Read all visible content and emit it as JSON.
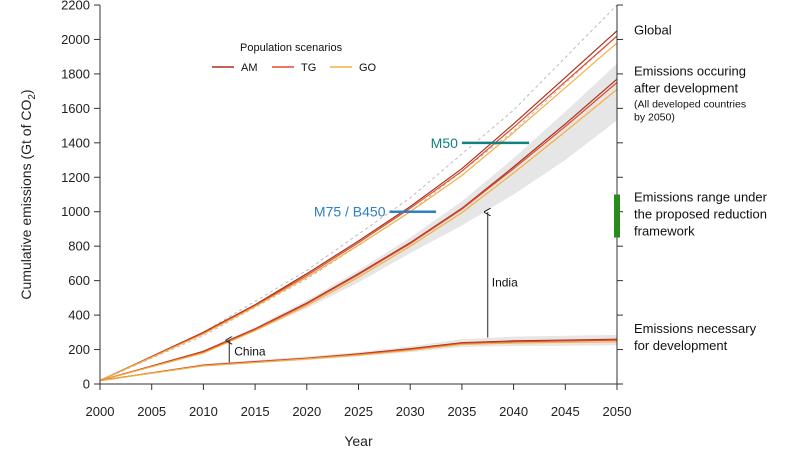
{
  "chart_data": {
    "type": "line",
    "title": "",
    "xlabel": "Year",
    "ylabel_main": "Cumulative emissions (Gt of CO",
    "ylabel_sub": "2",
    "ylabel_end": ")",
    "xlim": [
      2000,
      2050
    ],
    "ylim": [
      0,
      2200
    ],
    "x_ticks": [
      "2000",
      "2005",
      "2010",
      "2015",
      "2020",
      "2025",
      "2030",
      "2035",
      "2040",
      "2045",
      "2050"
    ],
    "y_ticks": [
      "0",
      "200",
      "400",
      "600",
      "800",
      "1000",
      "1200",
      "1400",
      "1600",
      "1800",
      "2000",
      "2200"
    ],
    "x": [
      2000,
      2010,
      2015,
      2020,
      2025,
      2030,
      2035,
      2040,
      2045,
      2050
    ],
    "legend": {
      "title": "Population scenarios",
      "entries": [
        {
          "name": "AM",
          "color": "#a83218"
        },
        {
          "name": "TG",
          "color": "#e04a30"
        },
        {
          "name": "GO",
          "color": "#f2b040"
        }
      ]
    },
    "series": [
      {
        "name": "AM global",
        "group": "global",
        "color": "#a83218",
        "values": [
          20,
          300,
          460,
          640,
          830,
          1030,
          1250,
          1510,
          1780,
          2050
        ]
      },
      {
        "name": "TG global",
        "group": "global",
        "color": "#e04a30",
        "values": [
          20,
          295,
          455,
          630,
          820,
          1020,
          1235,
          1490,
          1755,
          2020
        ]
      },
      {
        "name": "GO global",
        "group": "global",
        "color": "#f2b040",
        "values": [
          20,
          290,
          450,
          620,
          805,
          1000,
          1210,
          1460,
          1720,
          1980
        ]
      },
      {
        "name": "AM after development",
        "group": "after",
        "color": "#a83218",
        "values": [
          20,
          190,
          320,
          470,
          640,
          820,
          1020,
          1260,
          1510,
          1770
        ]
      },
      {
        "name": "TG after development",
        "group": "after",
        "color": "#e04a30",
        "values": [
          20,
          185,
          315,
          465,
          635,
          815,
          1015,
          1250,
          1495,
          1750
        ]
      },
      {
        "name": "GO after development",
        "group": "after",
        "color": "#f2b040",
        "values": [
          20,
          180,
          310,
          455,
          620,
          800,
          995,
          1225,
          1465,
          1710
        ]
      },
      {
        "name": "AM development",
        "group": "dev",
        "color": "#a83218",
        "values": [
          20,
          110,
          130,
          150,
          175,
          205,
          240,
          250,
          255,
          260
        ]
      },
      {
        "name": "TG development",
        "group": "dev",
        "color": "#e04a30",
        "values": [
          20,
          108,
          128,
          148,
          172,
          200,
          235,
          245,
          250,
          255
        ]
      },
      {
        "name": "GO development",
        "group": "dev",
        "color": "#f2b040",
        "values": [
          20,
          105,
          125,
          145,
          168,
          195,
          230,
          238,
          242,
          245
        ]
      }
    ],
    "bands": [
      {
        "name": "after development range",
        "x": [
          2010,
          2015,
          2020,
          2025,
          2030,
          2035,
          2040,
          2045,
          2050
        ],
        "lower": [
          185,
          305,
          440,
          590,
          760,
          920,
          1100,
          1300,
          1530
        ],
        "upper": [
          195,
          330,
          485,
          660,
          850,
          1060,
          1310,
          1580,
          1860
        ]
      },
      {
        "name": "development range",
        "x": [
          2010,
          2015,
          2020,
          2025,
          2030,
          2035,
          2040,
          2045,
          2050
        ],
        "lower": [
          100,
          120,
          138,
          160,
          185,
          215,
          220,
          222,
          225
        ],
        "upper": [
          118,
          138,
          160,
          185,
          218,
          260,
          275,
          280,
          285
        ]
      }
    ],
    "reference_lines": [
      {
        "name": "upper dashed",
        "color": "#bbbbbb",
        "x": [
          2000,
          2010,
          2020,
          2030,
          2040,
          2050
        ],
        "values": [
          20,
          300,
          660,
          1080,
          1590,
          2200
        ]
      },
      {
        "name": "lower dashed",
        "color": "#bbbbbb",
        "x": [
          2000,
          2010,
          2020,
          2030,
          2040,
          2050
        ],
        "values": [
          20,
          280,
          610,
          1000,
          1470,
          2020
        ]
      }
    ],
    "markers": [
      {
        "label": "M50",
        "color": "#138080",
        "x_start": 2035,
        "x_end": 2041.5,
        "y": 1400
      },
      {
        "label": "M75 / B450",
        "color": "#2e7fc4",
        "x_start": 2028,
        "x_end": 2032.5,
        "y": 1000
      }
    ],
    "reduction_range": {
      "color": "#2a8a1e",
      "low": 850,
      "high": 1100
    },
    "annotations": [
      {
        "label": "China",
        "x": 2012.5,
        "y_from": 125,
        "y_to": 265
      },
      {
        "label": "India",
        "x": 2037.5,
        "y_from": 270,
        "y_to": 1010
      }
    ],
    "side_labels": [
      {
        "lines": [
          "Global"
        ],
        "sub": [],
        "y": 2030
      },
      {
        "lines": [
          "Emissions occuring",
          "after development"
        ],
        "sub": [
          "(All developed countries",
          "by 2050)"
        ],
        "y": 1790
      },
      {
        "lines": [
          "Emissions range under",
          "the proposed reduction",
          "framework"
        ],
        "sub": [],
        "y": 1060
      },
      {
        "lines": [
          "Emissions necessary",
          "for development"
        ],
        "sub": [],
        "y": 295
      }
    ]
  }
}
